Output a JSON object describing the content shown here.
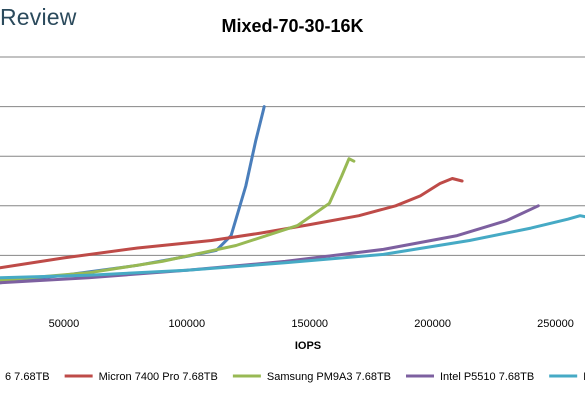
{
  "logo_text": "Review",
  "chart_data": {
    "type": "line",
    "title": "Mixed-70-30-16K",
    "xlabel": "IOPS",
    "ylabel": "",
    "xlim": [
      24000,
      262000
    ],
    "ylim": [
      0,
      5
    ],
    "x_ticks": [
      50000,
      100000,
      150000,
      200000,
      250000
    ],
    "x_tick_labels": [
      "50000",
      "100000",
      "150000",
      "200000",
      "250000"
    ],
    "grid": "horizontal",
    "legend_position": "bottom",
    "series": [
      {
        "name": "6 7.68TB",
        "color": "#4a7ebb",
        "points": [
          [
            24000,
            0.45
          ],
          [
            50000,
            0.6
          ],
          [
            80000,
            0.8
          ],
          [
            100000,
            0.98
          ],
          [
            112000,
            1.1
          ],
          [
            118000,
            1.4
          ],
          [
            124000,
            2.4
          ],
          [
            128000,
            3.3
          ],
          [
            131000,
            3.9
          ],
          [
            131500,
            4.0
          ]
        ]
      },
      {
        "name": "Micron 7400 Pro 7.68TB",
        "color": "#be4b48",
        "points": [
          [
            24000,
            0.75
          ],
          [
            50000,
            0.95
          ],
          [
            80000,
            1.15
          ],
          [
            110000,
            1.3
          ],
          [
            130000,
            1.45
          ],
          [
            150000,
            1.62
          ],
          [
            170000,
            1.8
          ],
          [
            185000,
            2.0
          ],
          [
            195000,
            2.2
          ],
          [
            203000,
            2.45
          ],
          [
            208000,
            2.55
          ],
          [
            212000,
            2.5
          ]
        ]
      },
      {
        "name": "Samsung PM9A3 7.68TB",
        "color": "#98b954",
        "points": [
          [
            24000,
            0.5
          ],
          [
            60000,
            0.65
          ],
          [
            90000,
            0.88
          ],
          [
            120000,
            1.2
          ],
          [
            145000,
            1.6
          ],
          [
            158000,
            2.05
          ],
          [
            163000,
            2.6
          ],
          [
            166000,
            2.95
          ],
          [
            168000,
            2.9
          ]
        ]
      },
      {
        "name": "Intel P5510 7.68TB",
        "color": "#7d60a0",
        "points": [
          [
            24000,
            0.45
          ],
          [
            60000,
            0.55
          ],
          [
            100000,
            0.7
          ],
          [
            140000,
            0.88
          ],
          [
            180000,
            1.12
          ],
          [
            210000,
            1.4
          ],
          [
            230000,
            1.7
          ],
          [
            243000,
            2.0
          ]
        ]
      },
      {
        "name": "Membl",
        "color": "#46aac5",
        "points": [
          [
            24000,
            0.55
          ],
          [
            60000,
            0.6
          ],
          [
            100000,
            0.7
          ],
          [
            140000,
            0.85
          ],
          [
            180000,
            1.02
          ],
          [
            215000,
            1.3
          ],
          [
            240000,
            1.55
          ],
          [
            255000,
            1.73
          ],
          [
            260000,
            1.8
          ],
          [
            262000,
            1.78
          ]
        ]
      }
    ]
  }
}
